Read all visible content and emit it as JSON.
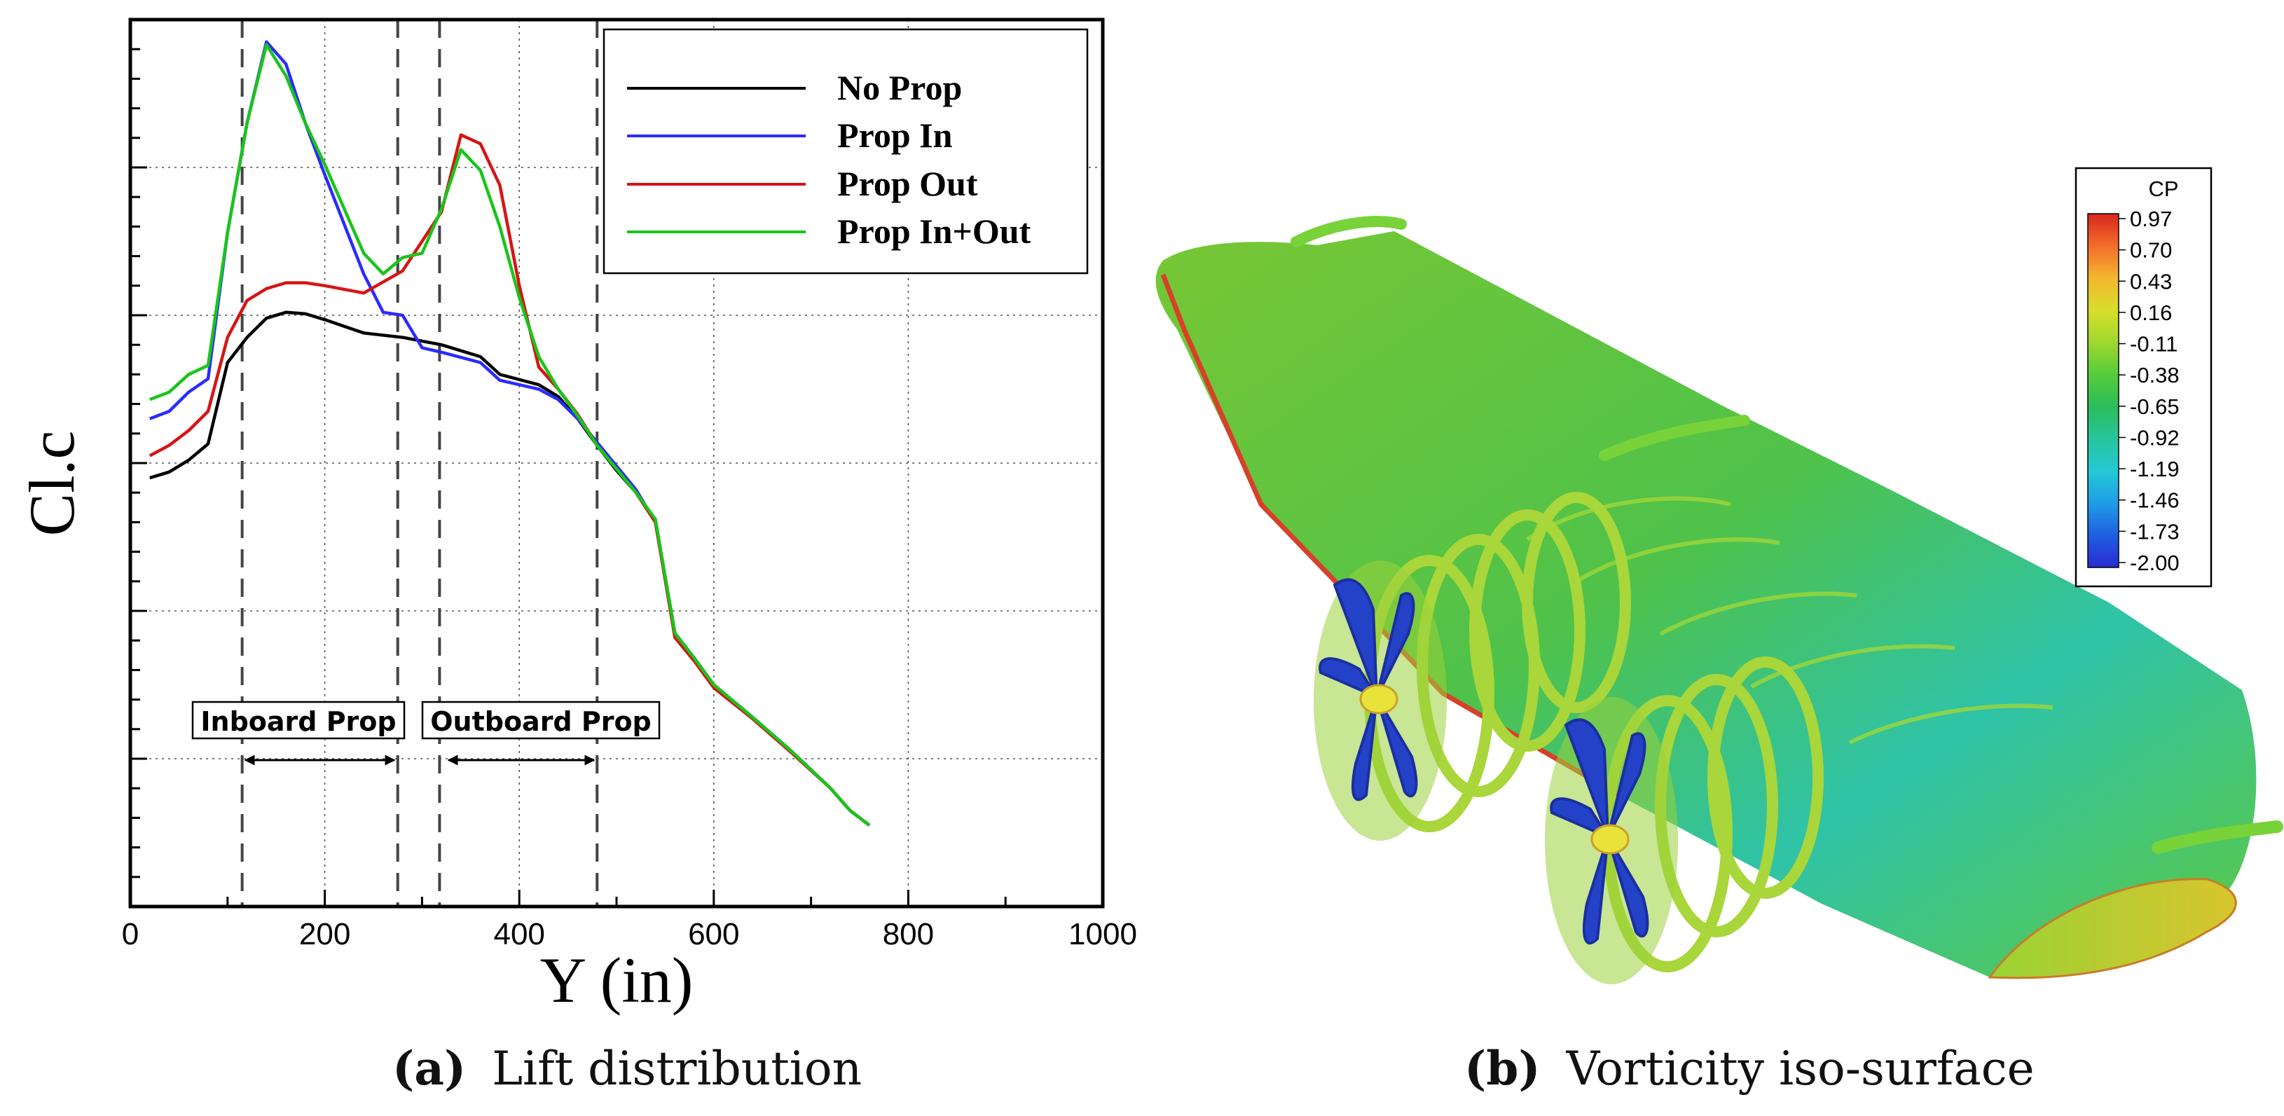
{
  "chart_data": [
    {
      "type": "line",
      "panel": "a",
      "caption_letter": "(a)",
      "caption_text": "Lift distribution",
      "xlabel": "Y (in)",
      "ylabel": "Cl.c",
      "xlim": [
        0,
        1000
      ],
      "x_ticks": [
        0,
        200,
        400,
        600,
        800,
        1000
      ],
      "ylim": [
        0,
        6
      ],
      "grid": true,
      "legend_position": "top-right",
      "colors": {
        "No Prop": "#000000",
        "Prop In": "#2b2bff",
        "Prop Out": "#d61515",
        "Prop In+Out": "#19c519"
      },
      "series": [
        {
          "name": "No Prop",
          "x": [
            20,
            40,
            60,
            80,
            100,
            120,
            140,
            160,
            180,
            200,
            240,
            280,
            320,
            360,
            380,
            420,
            440,
            460,
            480,
            500,
            520,
            540,
            560,
            580,
            600,
            640,
            680,
            720,
            740,
            760
          ],
          "y": [
            2.9,
            2.94,
            3.02,
            3.13,
            3.68,
            3.85,
            3.98,
            4.02,
            4.01,
            3.97,
            3.88,
            3.85,
            3.8,
            3.72,
            3.6,
            3.53,
            3.45,
            3.3,
            3.12,
            2.95,
            2.8,
            2.6,
            1.85,
            1.68,
            1.5,
            1.28,
            1.05,
            0.8,
            0.65,
            0.55
          ]
        },
        {
          "name": "Prop In",
          "x": [
            20,
            40,
            60,
            80,
            100,
            120,
            140,
            160,
            180,
            200,
            240,
            260,
            280,
            300,
            320,
            360,
            380,
            420,
            440,
            460,
            480,
            500,
            520,
            540,
            560,
            580,
            600,
            640,
            680,
            720,
            740,
            760
          ],
          "y": [
            3.3,
            3.35,
            3.48,
            3.57,
            4.56,
            5.3,
            5.85,
            5.7,
            5.3,
            4.95,
            4.28,
            4.02,
            4.0,
            3.78,
            3.75,
            3.68,
            3.56,
            3.5,
            3.43,
            3.3,
            3.14,
            2.98,
            2.82,
            2.6,
            1.85,
            1.68,
            1.5,
            1.28,
            1.05,
            0.8,
            0.65,
            0.55
          ]
        },
        {
          "name": "Prop Out",
          "x": [
            20,
            40,
            60,
            80,
            100,
            120,
            140,
            160,
            180,
            200,
            240,
            280,
            320,
            340,
            360,
            380,
            400,
            420,
            440,
            460,
            480,
            500,
            520,
            540,
            560,
            580,
            600,
            640,
            680,
            720,
            740,
            760
          ],
          "y": [
            3.05,
            3.12,
            3.22,
            3.35,
            3.85,
            4.1,
            4.18,
            4.22,
            4.22,
            4.2,
            4.15,
            4.3,
            4.7,
            5.22,
            5.16,
            4.88,
            4.2,
            3.65,
            3.5,
            3.33,
            3.12,
            2.96,
            2.8,
            2.6,
            1.82,
            1.66,
            1.48,
            1.27,
            1.04,
            0.8,
            0.65,
            0.55
          ]
        },
        {
          "name": "Prop In+Out",
          "x": [
            20,
            40,
            60,
            80,
            100,
            120,
            140,
            160,
            180,
            200,
            240,
            260,
            280,
            300,
            320,
            340,
            360,
            380,
            400,
            420,
            440,
            460,
            480,
            500,
            520,
            540,
            560,
            580,
            600,
            640,
            680,
            720,
            740,
            760
          ],
          "y": [
            3.43,
            3.48,
            3.6,
            3.66,
            4.56,
            5.3,
            5.83,
            5.62,
            5.3,
            5.02,
            4.42,
            4.28,
            4.39,
            4.42,
            4.72,
            5.12,
            4.98,
            4.6,
            4.12,
            3.72,
            3.5,
            3.32,
            3.12,
            2.96,
            2.8,
            2.62,
            1.85,
            1.68,
            1.5,
            1.28,
            1.05,
            0.8,
            0.65,
            0.55
          ]
        }
      ],
      "vertical_lines": [
        115,
        275,
        318,
        480
      ],
      "annotations": [
        {
          "label": "Inboard Prop",
          "x_start": 115,
          "x_end": 275
        },
        {
          "label": "Outboard Prop",
          "x_start": 318,
          "x_end": 480
        }
      ]
    },
    {
      "type": "other",
      "panel": "b",
      "caption_letter": "(b)",
      "caption_text": "Vorticity iso-surface",
      "colorbar": {
        "title": "CP",
        "ticks": [
          "0.97",
          "0.70",
          "0.43",
          "0.16",
          "-0.11",
          "-0.38",
          "-0.65",
          "-0.92",
          "-1.19",
          "-1.46",
          "-1.73",
          "-2.00"
        ],
        "gradient": [
          "#d7261d",
          "#f46d2b",
          "#f4b62e",
          "#d8de2a",
          "#9fd82e",
          "#55cc3a",
          "#2cbd5a",
          "#27c59c",
          "#24c9d6",
          "#1e9de6",
          "#1f5fe0",
          "#2b2bd4"
        ]
      }
    }
  ]
}
